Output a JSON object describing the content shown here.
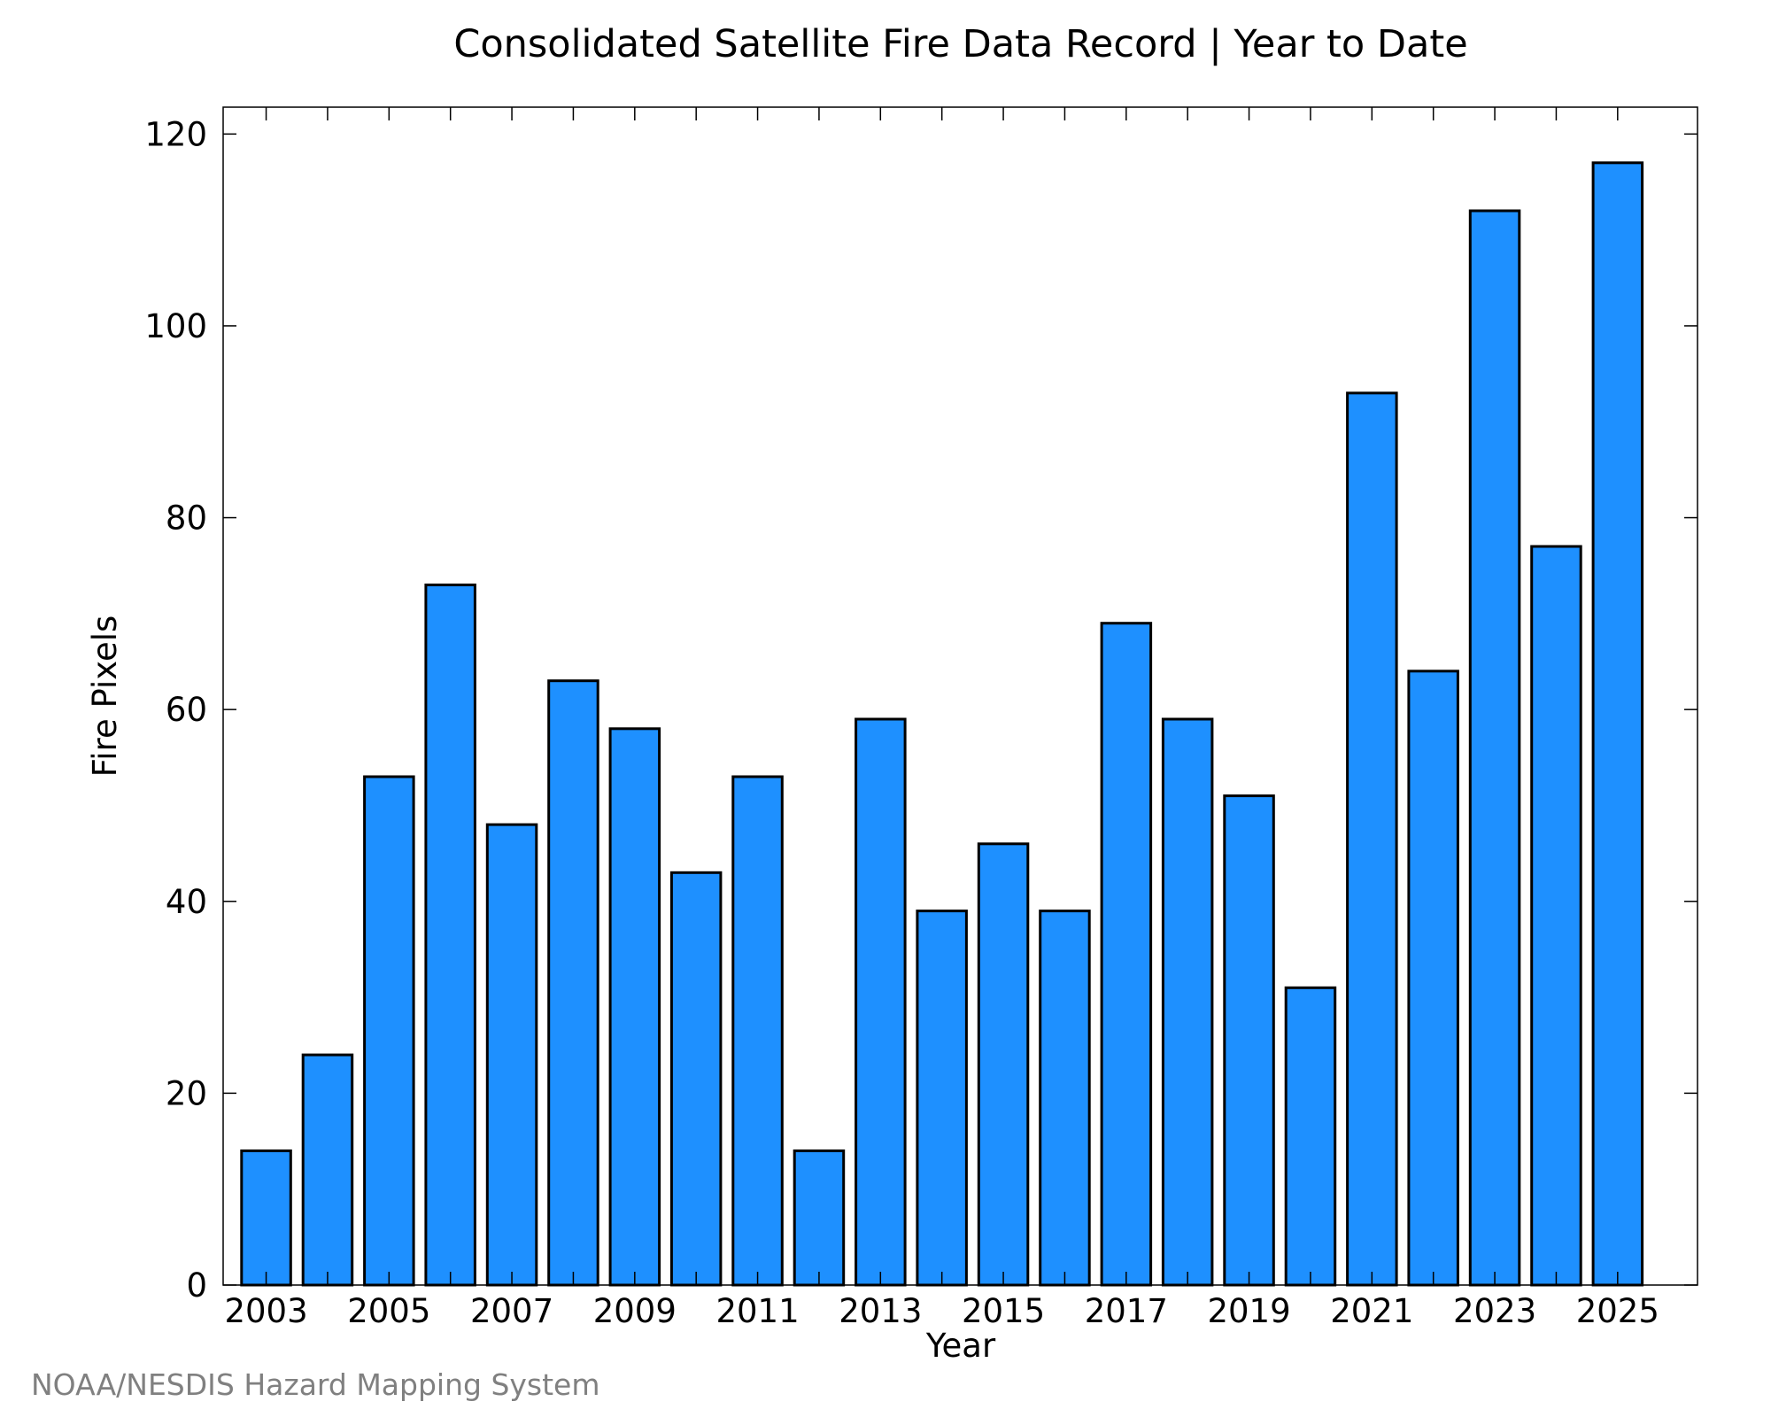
{
  "chart_data": {
    "type": "bar",
    "title": "Consolidated Satellite Fire Data Record | Year to Date",
    "xlabel": "Year",
    "ylabel": "Fire Pixels",
    "categories": [
      "2003",
      "2004",
      "2005",
      "2006",
      "2007",
      "2008",
      "2009",
      "2010",
      "2011",
      "2012",
      "2013",
      "2014",
      "2015",
      "2016",
      "2017",
      "2018",
      "2019",
      "2020",
      "2021",
      "2022",
      "2023",
      "2024",
      "2025"
    ],
    "values": [
      14,
      24,
      53,
      73,
      48,
      63,
      58,
      43,
      53,
      14,
      59,
      39,
      46,
      39,
      69,
      59,
      51,
      31,
      93,
      64,
      112,
      77,
      117
    ],
    "x_tick_labels": [
      "2003",
      "2005",
      "2007",
      "2009",
      "2011",
      "2013",
      "2015",
      "2017",
      "2019",
      "2021",
      "2023",
      "2025"
    ],
    "y_tick_labels": [
      "0",
      "20",
      "40",
      "60",
      "80",
      "100",
      "120"
    ],
    "y_ticks": [
      0,
      20,
      40,
      60,
      80,
      100,
      120
    ],
    "ylim": [
      0,
      122.8
    ],
    "grid": false,
    "legend": "none",
    "bar_color": "#1e90ff",
    "bar_edge_color": "#000000"
  },
  "credit": "NOAA/NESDIS Hazard Mapping System"
}
